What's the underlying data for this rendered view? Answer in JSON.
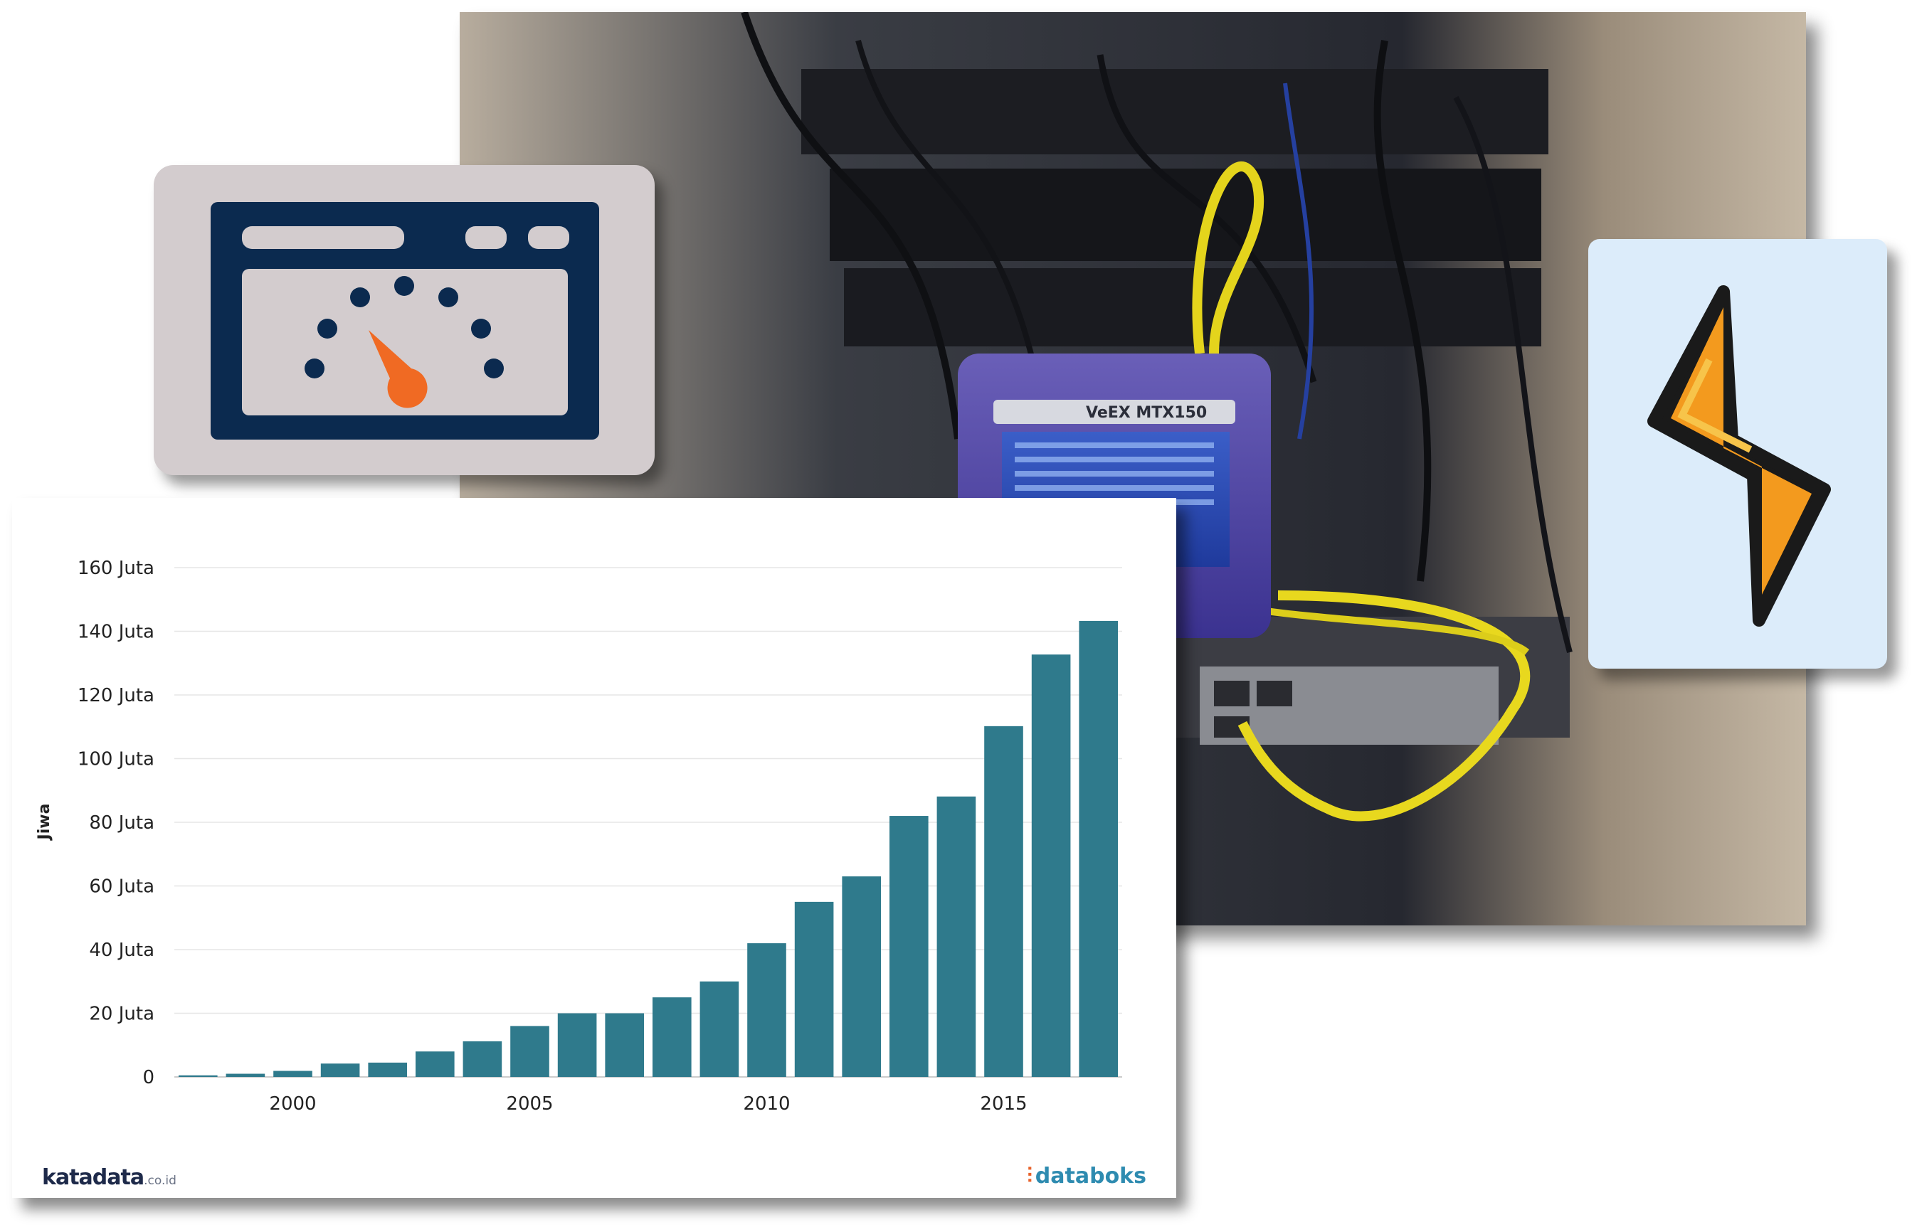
{
  "photo": {
    "device_brand": "VeEX MTX150",
    "icon": "network-rack-photo"
  },
  "gauge_card": {
    "icon": "speedometer-browser-icon",
    "accent": "#f06a23",
    "frame": "#0b2a4f"
  },
  "bolt_card": {
    "icon": "lightning-bolt-icon",
    "accent": "#f39a1e"
  },
  "chart_data": {
    "type": "bar",
    "categories": [
      "1998",
      "1999",
      "2000",
      "2001",
      "2002",
      "2003",
      "2004",
      "2005",
      "2006",
      "2007",
      "2008",
      "2009",
      "2010",
      "2011",
      "2012",
      "2013",
      "2014",
      "2015",
      "2016",
      "2017"
    ],
    "values": [
      0.5,
      1,
      1.9,
      4.2,
      4.5,
      8,
      11.2,
      16,
      20,
      20,
      25,
      30,
      42,
      55,
      63,
      82,
      88.1,
      110.2,
      132.7,
      143.26
    ],
    "x_tick_labels": [
      "2000",
      "2005",
      "2010",
      "2015"
    ],
    "y_tick_labels": [
      "0",
      "20 Juta",
      "40 Juta",
      "60 Juta",
      "80 Juta",
      "100 Juta",
      "120 Juta",
      "140 Juta",
      "160 Juta"
    ],
    "ylabel": "Jiwa",
    "ylim": [
      0,
      160
    ],
    "grid": true,
    "color": "#2f7a8c"
  },
  "footer": {
    "left_brand": "katadata",
    "left_suffix": ".co.id",
    "right_brand": "databoks"
  }
}
